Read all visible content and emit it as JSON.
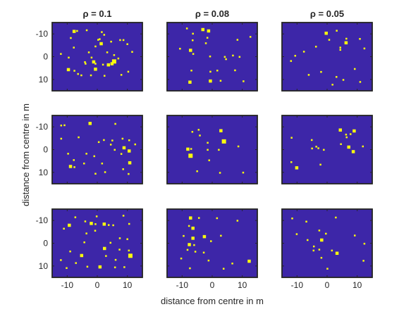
{
  "figure": {
    "background": "#ffffff",
    "panel_color": "#3d26a8",
    "marker_color": "#f9fb0e",
    "frame_color": "#262626"
  },
  "chart_data": {
    "type": "heatmap",
    "layout": {
      "rows": 3,
      "cols": 3
    },
    "column_titles": [
      "ρ = 0.1",
      "ρ = 0.08",
      "ρ = 0.05"
    ],
    "xlabel": "distance from centre in m",
    "ylabel": "distance from centre in m",
    "xlim": [
      -15,
      15
    ],
    "ylim": [
      -15,
      15
    ],
    "y_reversed": true,
    "x_ticks": [
      -10,
      0,
      10
    ],
    "x_tick_labels": [
      "-10",
      "0",
      "10"
    ],
    "y_ticks": [
      -10,
      0,
      10
    ],
    "y_tick_labels": [
      "-10",
      "0",
      "10"
    ],
    "grid": false,
    "panels": [
      {
        "row": 0,
        "col": 0,
        "points": [
          [
            -7.7,
            -11.1,
            2
          ],
          [
            -6.7,
            -11.3,
            1
          ],
          [
            -3.5,
            -11.6,
            1
          ],
          [
            1.5,
            -10.8,
            1
          ],
          [
            -8.8,
            -8.2,
            1
          ],
          [
            0.3,
            -7.4,
            1
          ],
          [
            2.3,
            -9.6,
            1
          ],
          [
            4.6,
            -6.6,
            1
          ],
          [
            7.6,
            -7.3,
            1
          ],
          [
            8.7,
            -7.3,
            1
          ],
          [
            1.3,
            -5.7,
            2
          ],
          [
            -0.6,
            -4.5,
            1
          ],
          [
            -7.8,
            -4.0,
            1
          ],
          [
            -2.8,
            -1.9,
            1
          ],
          [
            3.3,
            -1.9,
            1
          ],
          [
            11.6,
            -2.1,
            1
          ],
          [
            -12.1,
            -1.2,
            1
          ],
          [
            5.6,
            -0.7,
            1
          ],
          [
            -9.5,
            0.4,
            1
          ],
          [
            -1.9,
            0.4,
            1
          ],
          [
            7.0,
            0.8,
            1
          ],
          [
            -4.1,
            2.4,
            1
          ],
          [
            -3.9,
            3.1,
            1
          ],
          [
            -1.2,
            2.3,
            2
          ],
          [
            1.9,
            3.5,
            1
          ],
          [
            3.7,
            3.6,
            2
          ],
          [
            4.9,
            3.1,
            2
          ],
          [
            5.6,
            2.1,
            3
          ],
          [
            -0.6,
            3.1,
            1
          ],
          [
            -9.6,
            5.7,
            2
          ],
          [
            -7.6,
            6.2,
            1
          ],
          [
            -0.6,
            5.5,
            2
          ],
          [
            10.3,
            6.6,
            1
          ],
          [
            -5.3,
            8.2,
            1
          ],
          [
            -2.1,
            8.2,
            1
          ],
          [
            2.4,
            8.4,
            1
          ],
          [
            8.0,
            8.0,
            1
          ],
          [
            0.8,
            -7.7,
            1
          ],
          [
            -6.4,
            7.6,
            1
          ],
          [
            10.0,
            -5.5,
            1
          ]
        ]
      },
      {
        "row": 0,
        "col": 1,
        "points": [
          [
            -8.4,
            -12.4,
            1
          ],
          [
            -3.1,
            -11.9,
            2
          ],
          [
            -1.2,
            -11.3,
            2
          ],
          [
            -6.4,
            -10.1,
            1
          ],
          [
            -1.6,
            -8.3,
            1
          ],
          [
            -6.5,
            -7.2,
            1
          ],
          [
            8.4,
            -7.4,
            1
          ],
          [
            -7.2,
            -2.8,
            2
          ],
          [
            -10.7,
            -3.5,
            1
          ],
          [
            -0.7,
            -0.1,
            1
          ],
          [
            4.2,
            0.1,
            1
          ],
          [
            6.9,
            -0.5,
            1
          ],
          [
            9.1,
            0.1,
            1
          ],
          [
            4.6,
            1.1,
            1
          ],
          [
            -2.1,
            -5.9,
            1
          ],
          [
            -6.9,
            6.1,
            1
          ],
          [
            -0.6,
            6.6,
            1
          ],
          [
            1.7,
            6.1,
            1
          ],
          [
            7.6,
            6.0,
            1
          ],
          [
            -0.6,
            10.7,
            2
          ],
          [
            2.8,
            10.6,
            1
          ],
          [
            -7.4,
            11.2,
            2
          ],
          [
            10.4,
            10.8,
            1
          ],
          [
            -6.3,
            -1.2,
            1
          ],
          [
            12.7,
            -8.7,
            1
          ]
        ]
      },
      {
        "row": 0,
        "col": 2,
        "points": [
          [
            -0.3,
            -10.3,
            2
          ],
          [
            6.4,
            -7.9,
            1
          ],
          [
            10.9,
            -7.8,
            1
          ],
          [
            0.7,
            -7.4,
            1
          ],
          [
            -3.7,
            -4.4,
            1
          ],
          [
            4.4,
            -4.0,
            1
          ],
          [
            12.4,
            -3.6,
            1
          ],
          [
            -7.7,
            -2.2,
            1
          ],
          [
            -10.6,
            -0.4,
            1
          ],
          [
            4.4,
            -3.0,
            1
          ],
          [
            6.3,
            -6.1,
            2
          ],
          [
            -2.0,
            6.7,
            1
          ],
          [
            -6.1,
            8.0,
            1
          ],
          [
            3.1,
            8.9,
            1
          ],
          [
            5.4,
            10.2,
            1
          ],
          [
            11.0,
            11.1,
            1
          ],
          [
            1.8,
            12.3,
            1
          ],
          [
            -12.0,
            1.9,
            1
          ],
          [
            3.2,
            -11.4,
            1
          ],
          [
            9.2,
            5.4,
            1
          ]
        ]
      },
      {
        "row": 1,
        "col": 0,
        "points": [
          [
            -12.0,
            -10.6,
            1
          ],
          [
            -10.9,
            -10.7,
            1
          ],
          [
            -2.4,
            -11.5,
            2
          ],
          [
            6.0,
            -11.3,
            1
          ],
          [
            -6.2,
            -5.4,
            1
          ],
          [
            -12.0,
            -4.8,
            1
          ],
          [
            2.2,
            -4.2,
            1
          ],
          [
            5.0,
            -4.0,
            1
          ],
          [
            8.4,
            -4.8,
            1
          ],
          [
            10.6,
            -4.1,
            1
          ],
          [
            0.5,
            -3.3,
            1
          ],
          [
            4.5,
            -2.2,
            1
          ],
          [
            12.6,
            -2.3,
            1
          ],
          [
            8.9,
            -0.8,
            2
          ],
          [
            5.8,
            0.1,
            1
          ],
          [
            10.6,
            0.6,
            2
          ],
          [
            -9.7,
            1.8,
            1
          ],
          [
            -3.6,
            1.8,
            1
          ],
          [
            8.0,
            1.9,
            1
          ],
          [
            -1.0,
            2.9,
            1
          ],
          [
            -7.8,
            4.6,
            1
          ],
          [
            10.8,
            5.8,
            2
          ],
          [
            -8.9,
            7.4,
            2
          ],
          [
            -7.6,
            7.7,
            1
          ],
          [
            -4.4,
            6.1,
            1
          ],
          [
            8.6,
            8.6,
            1
          ],
          [
            -0.6,
            10.6,
            1
          ],
          [
            10.4,
            10.7,
            1
          ],
          [
            2.6,
            9.9,
            1
          ],
          [
            1.6,
            6.1,
            1
          ]
        ]
      },
      {
        "row": 1,
        "col": 1,
        "points": [
          [
            -6.6,
            -7.8,
            1
          ],
          [
            -4.5,
            -8.7,
            1
          ],
          [
            2.9,
            -8.3,
            2
          ],
          [
            -4.1,
            -6.2,
            1
          ],
          [
            3.9,
            -3.6,
            3
          ],
          [
            -1.5,
            -3.0,
            1
          ],
          [
            -8.1,
            -0.2,
            2
          ],
          [
            -7.0,
            -0.3,
            1
          ],
          [
            -1.5,
            0.1,
            1
          ],
          [
            -7.2,
            2.7,
            3
          ],
          [
            -1.0,
            4.7,
            1
          ],
          [
            -5.0,
            9.5,
            1
          ],
          [
            2.6,
            10.2,
            1
          ],
          [
            10.3,
            10.1,
            1
          ],
          [
            8.7,
            -1.4,
            1
          ],
          [
            2.2,
            0.1,
            1
          ]
        ]
      },
      {
        "row": 1,
        "col": 2,
        "points": [
          [
            4.4,
            -8.6,
            2
          ],
          [
            9.0,
            -8.2,
            2
          ],
          [
            -11.8,
            -5.2,
            1
          ],
          [
            6.5,
            -5.4,
            1
          ],
          [
            -5.1,
            -4.2,
            1
          ],
          [
            -3.6,
            -1.3,
            1
          ],
          [
            -5.0,
            -0.5,
            1
          ],
          [
            -2.9,
            -0.6,
            1
          ],
          [
            7.2,
            -1.1,
            2
          ],
          [
            11.9,
            -1.4,
            1
          ],
          [
            8.7,
            0.9,
            2
          ],
          [
            -1.1,
            0.1,
            1
          ],
          [
            4.6,
            -2.4,
            1
          ],
          [
            -2.2,
            6.6,
            1
          ],
          [
            -10.1,
            8.0,
            2
          ],
          [
            6.3,
            -6.6,
            1
          ],
          [
            -11.9,
            5.5,
            1
          ],
          [
            7.8,
            -6.8,
            1
          ]
        ]
      },
      {
        "row": 2,
        "col": 0,
        "points": [
          [
            -7.3,
            -11.4,
            1
          ],
          [
            -0.2,
            -11.8,
            1
          ],
          [
            8.7,
            -12.1,
            1
          ],
          [
            -4.0,
            -9.6,
            1
          ],
          [
            -2.0,
            -8.7,
            2
          ],
          [
            -0.6,
            -8.4,
            1
          ],
          [
            2.3,
            -8.4,
            2
          ],
          [
            5.3,
            -7.9,
            1
          ],
          [
            10.6,
            -8.5,
            1
          ],
          [
            -9.3,
            -7.9,
            2
          ],
          [
            -11.1,
            -6.4,
            1
          ],
          [
            3.8,
            -8.0,
            1
          ],
          [
            -0.7,
            -5.5,
            1
          ],
          [
            -3.6,
            -4.3,
            1
          ],
          [
            7.5,
            -2.2,
            1
          ],
          [
            -4.3,
            -0.4,
            1
          ],
          [
            4.4,
            -0.2,
            1
          ],
          [
            10.0,
            -1.8,
            1
          ],
          [
            2.4,
            2.3,
            2
          ],
          [
            7.4,
            2.8,
            1
          ],
          [
            -9.0,
            3.6,
            1
          ],
          [
            10.5,
            3.2,
            1
          ],
          [
            11.0,
            5.5,
            3
          ],
          [
            -5.2,
            5.4,
            2
          ],
          [
            2.9,
            5.6,
            1
          ],
          [
            -12.1,
            7.4,
            1
          ],
          [
            -7.1,
            8.7,
            1
          ],
          [
            -3.3,
            10.3,
            1
          ],
          [
            0.9,
            10.4,
            2
          ],
          [
            5.9,
            10.6,
            1
          ],
          [
            9.0,
            10.5,
            1
          ],
          [
            -10.2,
            10.9,
            1
          ],
          [
            6.1,
            7.3,
            1
          ]
        ]
      },
      {
        "row": 2,
        "col": 1,
        "points": [
          [
            -7.2,
            -11.1,
            2
          ],
          [
            -4.4,
            -11.1,
            1
          ],
          [
            1.6,
            -11.0,
            1
          ],
          [
            8.4,
            -9.9,
            1
          ],
          [
            -7.7,
            -7.6,
            1
          ],
          [
            -6.4,
            -6.6,
            2
          ],
          [
            -6.4,
            -2.2,
            2
          ],
          [
            -2.6,
            -2.9,
            2
          ],
          [
            -9.5,
            -3.2,
            1
          ],
          [
            2.9,
            -3.3,
            1
          ],
          [
            -0.4,
            -0.9,
            1
          ],
          [
            -6.0,
            0.8,
            1
          ],
          [
            -7.6,
            0.6,
            2
          ],
          [
            -8.2,
            2.9,
            1
          ],
          [
            -5.6,
            3.7,
            1
          ],
          [
            -2.8,
            4.1,
            1
          ],
          [
            -10.3,
            6.7,
            1
          ],
          [
            -1.2,
            7.6,
            1
          ],
          [
            12.3,
            7.9,
            2
          ],
          [
            -7.4,
            11.0,
            1
          ],
          [
            3.8,
            11.2,
            1
          ],
          [
            6.7,
            8.9,
            1
          ]
        ]
      },
      {
        "row": 2,
        "col": 2,
        "points": [
          [
            -11.6,
            -10.9,
            1
          ],
          [
            -6.9,
            -9.5,
            1
          ],
          [
            -2.6,
            -5.6,
            1
          ],
          [
            -0.4,
            -4.2,
            1
          ],
          [
            -10.1,
            -4.0,
            1
          ],
          [
            -6.5,
            -1.4,
            1
          ],
          [
            -1.8,
            -1.4,
            2
          ],
          [
            -4.4,
            1.4,
            1
          ],
          [
            -2.6,
            2.8,
            1
          ],
          [
            1.6,
            3.2,
            1
          ],
          [
            -4.5,
            3.2,
            1
          ],
          [
            3.3,
            4.4,
            2
          ],
          [
            -1.9,
            6.4,
            1
          ],
          [
            12.1,
            7.7,
            1
          ],
          [
            0.1,
            11.2,
            1
          ],
          [
            2.9,
            -11.3,
            1
          ],
          [
            9.2,
            -3.4,
            1
          ],
          [
            12.4,
            0.2,
            1
          ]
        ]
      }
    ]
  }
}
